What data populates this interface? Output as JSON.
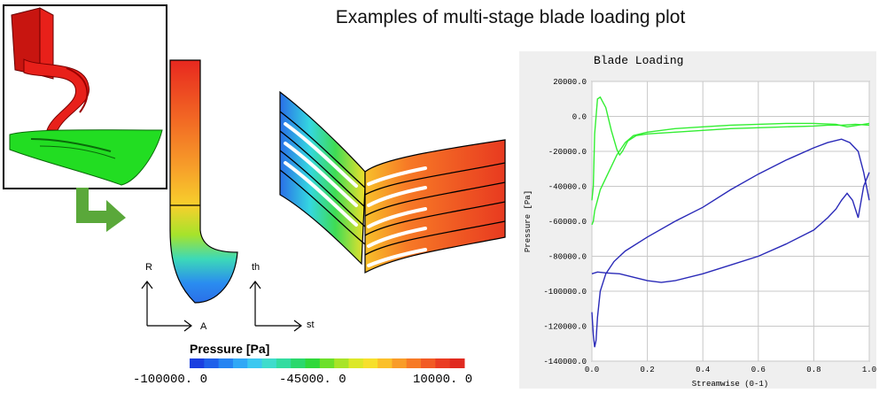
{
  "slide": {
    "title": "Examples of multi-stage blade loading plot"
  },
  "meridional_view": {
    "axis_vertical": "R",
    "axis_horizontal": "A"
  },
  "blade_to_blade_view": {
    "axis_vertical": "th",
    "axis_horizontal": "st"
  },
  "color_legend": {
    "title": "Pressure [Pa]",
    "min_label": "-100000. 0",
    "mid_label": "-45000. 0",
    "max_label": "10000. 0",
    "colors": [
      "#1a3fe0",
      "#1f60ea",
      "#2684f2",
      "#30a8f6",
      "#3cc8f0",
      "#3fdccc",
      "#33dca0",
      "#2ad86c",
      "#2fd83a",
      "#6ce02a",
      "#a8e428",
      "#dce828",
      "#f7e02c",
      "#fbc02a",
      "#f99c28",
      "#f77a26",
      "#f25a24",
      "#ea3c22",
      "#e02a20"
    ]
  },
  "colors": {
    "rotor_red": "#e8201a",
    "stator_green": "#22dd22",
    "arrow_green": "#5aa83a",
    "line_green": "#33ee33",
    "line_blue": "#2a2ab8"
  },
  "icons": [
    "turbine-model-icon",
    "right-turn-arrow-icon"
  ],
  "chart_data": {
    "type": "line",
    "title": "Blade Loading",
    "xlabel": "Streamwise (0-1)",
    "ylabel": "Pressure [Pa]",
    "xlim": [
      0.0,
      1.0
    ],
    "ylim": [
      -140000,
      20000
    ],
    "xticks": [
      "0.0",
      "0.2",
      "0.4",
      "0.6",
      "0.8",
      "1.0"
    ],
    "yticks": [
      "20000.0",
      "0.0",
      "-20000.0",
      "-40000.0",
      "-60000.0",
      "-80000.0",
      "-100000.0",
      "-120000.0",
      "-140000.0"
    ],
    "grid": true,
    "series": [
      {
        "color": "#33ee33",
        "x": [
          0.0,
          0.005,
          0.01,
          0.02,
          0.03,
          0.05,
          0.07,
          0.09,
          0.1,
          0.11,
          0.13,
          0.16,
          0.2,
          0.3,
          0.4,
          0.5,
          0.6,
          0.7,
          0.8,
          0.85,
          0.9,
          0.95,
          1.0
        ],
        "y": [
          -48000,
          -40000,
          -10000,
          10000,
          11000,
          5000,
          -8000,
          -19000,
          -22000,
          -20000,
          -14000,
          -11000,
          -10000,
          -9000,
          -8000,
          -7000,
          -6500,
          -6000,
          -5500,
          -5000,
          -5000,
          -4500,
          -5000
        ]
      },
      {
        "color": "#33ee33",
        "x": [
          0.0,
          0.005,
          0.01,
          0.03,
          0.06,
          0.09,
          0.12,
          0.15,
          0.2,
          0.3,
          0.4,
          0.5,
          0.6,
          0.7,
          0.8,
          0.88,
          0.92,
          0.96,
          1.0
        ],
        "y": [
          -62000,
          -60000,
          -54000,
          -42000,
          -32000,
          -22000,
          -15000,
          -11000,
          -9000,
          -7000,
          -6000,
          -5000,
          -4500,
          -4000,
          -4000,
          -4500,
          -6000,
          -5000,
          -4000
        ]
      },
      {
        "color": "#2a2ab8",
        "x": [
          0.0,
          0.005,
          0.01,
          0.015,
          0.02,
          0.03,
          0.05,
          0.08,
          0.12,
          0.2,
          0.3,
          0.4,
          0.5,
          0.6,
          0.7,
          0.8,
          0.85,
          0.9,
          0.93,
          0.96,
          0.98,
          1.0
        ],
        "y": [
          -112000,
          -125000,
          -132000,
          -128000,
          -115000,
          -100000,
          -90000,
          -83000,
          -77000,
          -69000,
          -60000,
          -52000,
          -42000,
          -33000,
          -25000,
          -18000,
          -15000,
          -13000,
          -15000,
          -20000,
          -32000,
          -48000
        ]
      },
      {
        "color": "#2a2ab8",
        "x": [
          0.0,
          0.02,
          0.05,
          0.1,
          0.15,
          0.2,
          0.25,
          0.3,
          0.4,
          0.5,
          0.6,
          0.7,
          0.8,
          0.85,
          0.88,
          0.9,
          0.92,
          0.94,
          0.96,
          0.98,
          1.0
        ],
        "y": [
          -90000,
          -89000,
          -89500,
          -90000,
          -92000,
          -94000,
          -95000,
          -94000,
          -90000,
          -85000,
          -80000,
          -73000,
          -65000,
          -58000,
          -53000,
          -48000,
          -44000,
          -48000,
          -58000,
          -40000,
          -32000
        ]
      }
    ]
  }
}
